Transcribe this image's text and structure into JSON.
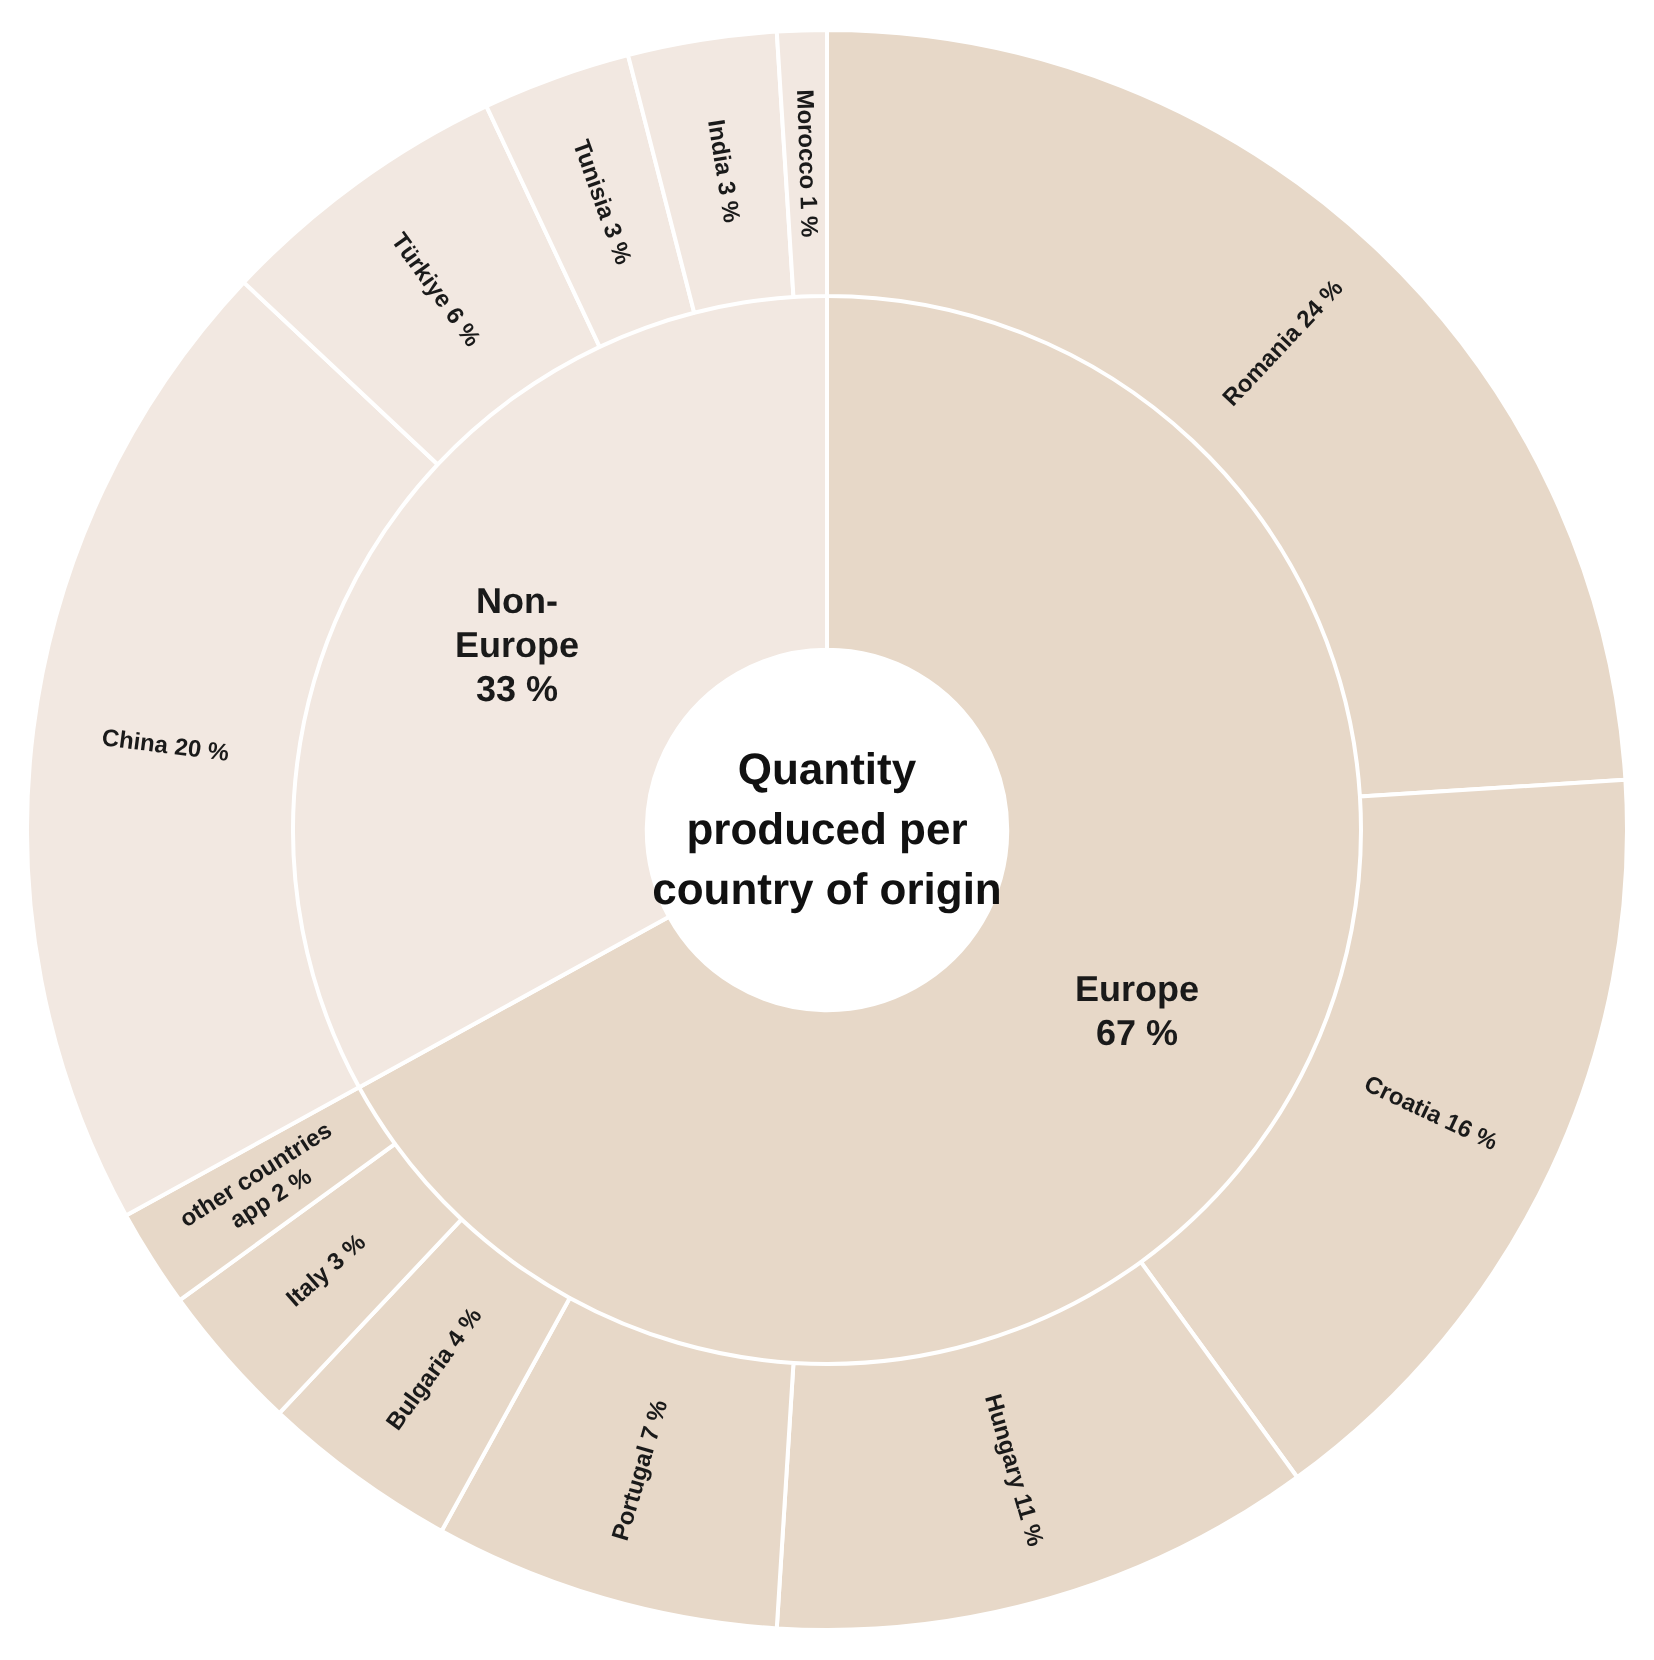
{
  "chart_data": [
    {
      "type": "donut",
      "title": "Quantity produced per country of origin",
      "categories": [
        "Europe",
        "Non-Europe"
      ],
      "values": [
        67,
        33
      ],
      "value_labels": [
        "67 %",
        "33 %"
      ],
      "colors": [
        "#e7d8c8",
        "#f2e8e1"
      ]
    },
    {
      "type": "donut",
      "categories": [
        "Romania",
        "Croatia",
        "Hungary",
        "Portugal",
        "Bulgaria",
        "Italy",
        "other countries app",
        "China",
        "Türkiye",
        "Tunisia",
        "India",
        "Morocco"
      ],
      "values": [
        24,
        16,
        11,
        7,
        4,
        3,
        2,
        20,
        6,
        3,
        3,
        1
      ],
      "value_labels": [
        "24 %",
        "16 %",
        "11 %",
        "7 %",
        "4 %",
        "3 %",
        "2 %",
        "20 %",
        "6 %",
        "3 %",
        "3 %",
        "1 %"
      ],
      "colors": [
        "#e7d8c8",
        "#e7d8c8",
        "#e7d8c8",
        "#e7d8c8",
        "#e7d8c8",
        "#e7d8c8",
        "#e7d8c8",
        "#f2e8e1",
        "#f2e8e1",
        "#f2e8e1",
        "#f2e8e1",
        "#f2e8e1"
      ]
    }
  ]
}
